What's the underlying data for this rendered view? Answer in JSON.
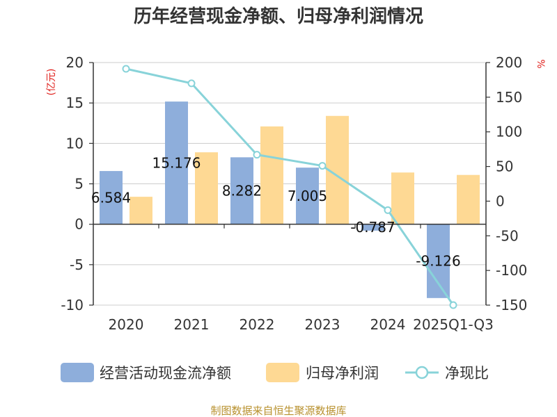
{
  "title": "历年经营现金净额、归母净利润情况",
  "source": "制图数据来自恒生聚源数据库",
  "colors": {
    "cash_flow": "#8eaedb",
    "net_profit": "#fed994",
    "ratio": "#88d3d9",
    "unit": "#e0201c",
    "source": "#b8912e"
  },
  "chart_data": {
    "type": "bar",
    "categories": [
      "2020",
      "2021",
      "2022",
      "2023",
      "2024",
      "2025Q1-Q3"
    ],
    "left_axis": {
      "unit": "(亿元)",
      "ylim": [
        -10,
        20
      ],
      "ticks": [
        -10,
        -5,
        0,
        5,
        10,
        15,
        20
      ]
    },
    "right_axis": {
      "unit": "%",
      "ylim": [
        -150,
        200
      ],
      "ticks": [
        -150,
        -100,
        -50,
        0,
        50,
        100,
        150,
        200
      ]
    },
    "series": [
      {
        "name": "经营活动现金流净额",
        "type": "bar",
        "axis": "left",
        "values": [
          6.584,
          15.176,
          8.282,
          7.005,
          -0.787,
          -9.126
        ],
        "labels": [
          "6.584",
          "15.176",
          "8.282",
          "7.005",
          "-0.787",
          "-9.126"
        ]
      },
      {
        "name": "归母净利润",
        "type": "bar",
        "axis": "left",
        "values": [
          3.4,
          8.9,
          12.1,
          13.4,
          6.4,
          6.1
        ]
      },
      {
        "name": "净现比",
        "type": "line",
        "axis": "right",
        "values": [
          191,
          170,
          67,
          51,
          -13,
          -150
        ]
      }
    ],
    "grid": true,
    "legend": "bottom"
  }
}
